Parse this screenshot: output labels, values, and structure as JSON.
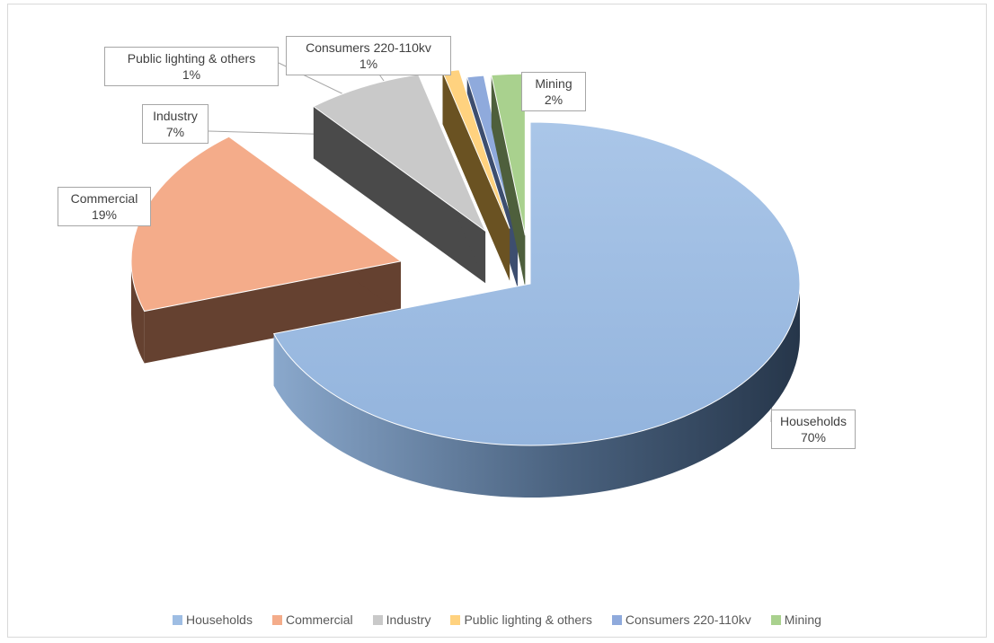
{
  "chart_data": {
    "type": "pie",
    "variant": "3d-exploded",
    "title": "",
    "slices": [
      {
        "name": "Households",
        "value": 70,
        "label": "70%",
        "color": "#9ebde3"
      },
      {
        "name": "Commercial",
        "value": 19,
        "label": "19%",
        "color": "#f4ac8a"
      },
      {
        "name": "Industry",
        "value": 7,
        "label": "7%",
        "color": "#c9c9c9"
      },
      {
        "name": "Public lighting & others",
        "value": 1,
        "label": "1%",
        "color": "#ffd27f"
      },
      {
        "name": "Consumers 220-110kv",
        "value": 1,
        "label": "1%",
        "color": "#8faadc"
      },
      {
        "name": "Mining",
        "value": 2,
        "label": "2%",
        "color": "#a9d18e"
      }
    ],
    "legend_position": "bottom"
  },
  "labels": {
    "households": {
      "name": "Households",
      "pct": "70%"
    },
    "commercial": {
      "name": "Commercial",
      "pct": "19%"
    },
    "industry": {
      "name": "Industry",
      "pct": "7%"
    },
    "public": {
      "name": "Public lighting & others",
      "pct": "1%"
    },
    "consumers": {
      "name": "Consumers 220-110kv",
      "pct": "1%"
    },
    "mining": {
      "name": "Mining",
      "pct": "2%"
    }
  },
  "legend": [
    {
      "name": "Households",
      "color": "#9ebde3"
    },
    {
      "name": "Commercial",
      "color": "#f4ac8a"
    },
    {
      "name": "Industry",
      "color": "#c9c9c9"
    },
    {
      "name": "Public lighting & others",
      "color": "#ffd27f"
    },
    {
      "name": "Consumers 220-110kv",
      "color": "#8faadc"
    },
    {
      "name": "Mining",
      "color": "#a9d18e"
    }
  ]
}
